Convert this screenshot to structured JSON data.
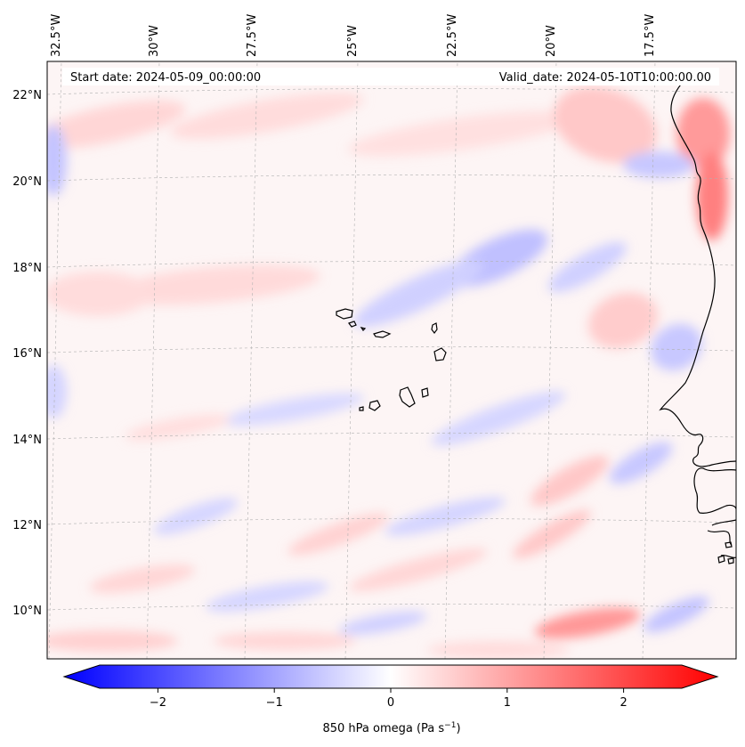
{
  "map": {
    "start_date": "Start date: 2024-05-09_00:00:00",
    "valid_date": "Valid_date: 2024-05-10T10:00:00.00",
    "lon_labels": [
      "32.5°W",
      "30°W",
      "27.5°W",
      "25°W",
      "22.5°W",
      "20°W",
      "17.5°W"
    ],
    "lat_labels": [
      "22°N",
      "20°N",
      "18°N",
      "16°N",
      "14°N",
      "12°N",
      "10°N"
    ],
    "field": "850 hPa omega",
    "colormap": "bwr",
    "colors": {
      "negative": "#0000ff",
      "zero": "#ffffff",
      "positive": "#ff0000",
      "coast": "#000000",
      "grid": "#b0b0b0"
    }
  },
  "colorbar": {
    "label": "850 hPa omega (Pa s",
    "label_sup": "−1",
    "label_end": ")",
    "ticks": [
      "−2",
      "−1",
      "0",
      "1",
      "2"
    ],
    "tick_values": [
      -2,
      -1,
      0,
      1,
      2
    ],
    "vmin": -2.5,
    "vmax": 2.5,
    "extend": "both"
  }
}
